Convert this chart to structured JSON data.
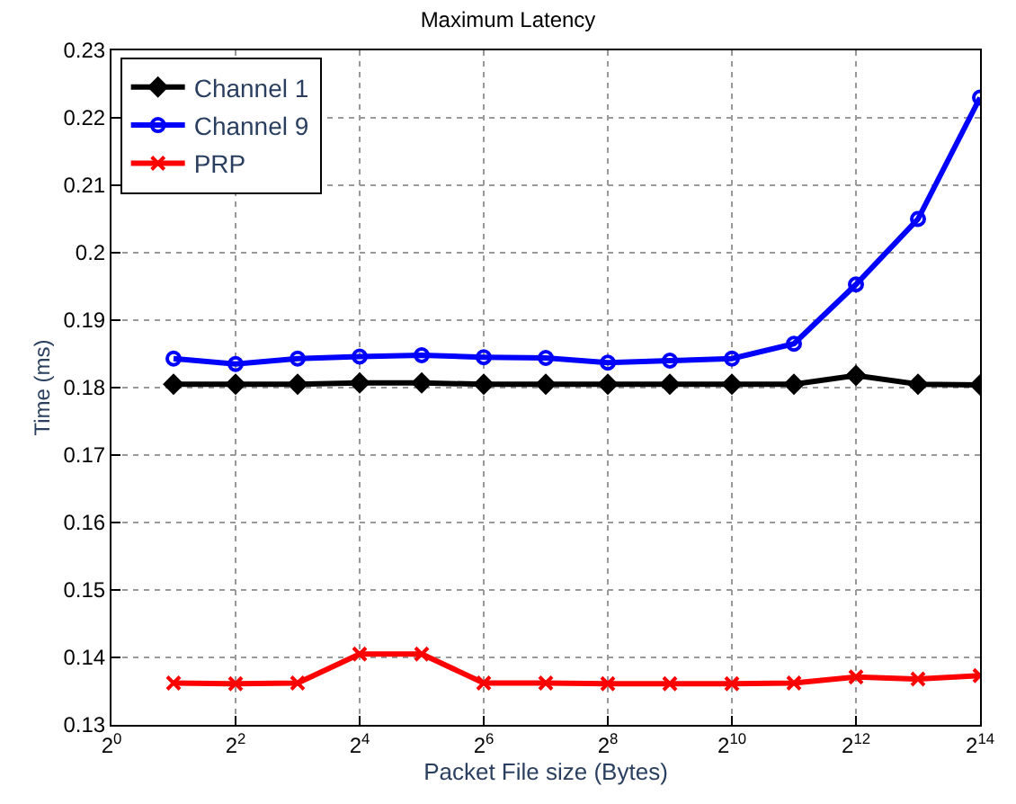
{
  "chart_data": {
    "type": "line",
    "title": "Maximum Latency",
    "xlabel": "Packet File size (Bytes)",
    "ylabel": "Time (ms)",
    "x": [
      2,
      4,
      8,
      16,
      32,
      64,
      128,
      256,
      512,
      1024,
      2048,
      4096,
      8192,
      16384
    ],
    "series": [
      {
        "name": "Channel 1",
        "color": "#000000",
        "marker": "diamond",
        "values": [
          0.1805,
          0.1805,
          0.1805,
          0.1807,
          0.1807,
          0.1805,
          0.1805,
          0.1805,
          0.1805,
          0.1805,
          0.1805,
          0.1818,
          0.1805,
          0.1804
        ]
      },
      {
        "name": "Channel 9",
        "color": "#0000ff",
        "marker": "circle",
        "values": [
          0.1843,
          0.1835,
          0.1843,
          0.1846,
          0.1848,
          0.1845,
          0.1844,
          0.1837,
          0.184,
          0.1843,
          0.1865,
          0.1953,
          0.205,
          0.223
        ]
      },
      {
        "name": "PRP",
        "color": "#ff0000",
        "marker": "cross",
        "values": [
          0.1362,
          0.1361,
          0.1362,
          0.1405,
          0.1405,
          0.1362,
          0.1362,
          0.1361,
          0.1361,
          0.1361,
          0.1362,
          0.1371,
          0.1368,
          0.1373
        ]
      }
    ],
    "log": "x",
    "xlim": [
      1,
      16384
    ],
    "xticks": [
      {
        "value": 1,
        "label": "2$^{0}$"
      },
      {
        "value": 4,
        "label": "2$^{2}$"
      },
      {
        "value": 16,
        "label": "2$^{4}$"
      },
      {
        "value": 64,
        "label": "2$^{6}$"
      },
      {
        "value": 256,
        "label": "2$^{8}$"
      },
      {
        "value": 1024,
        "label": "2$^{10}$"
      },
      {
        "value": 4096,
        "label": "2$^{12}$"
      },
      {
        "value": 16384,
        "label": "2$^{14}$"
      }
    ],
    "ylim": [
      0.13,
      0.23
    ],
    "yticks": [
      0.13,
      0.14,
      0.15,
      0.16,
      0.17,
      0.18,
      0.19,
      0.2,
      0.21,
      0.22,
      0.23
    ],
    "grid": true,
    "line_style": "solid",
    "legend": "top left"
  }
}
